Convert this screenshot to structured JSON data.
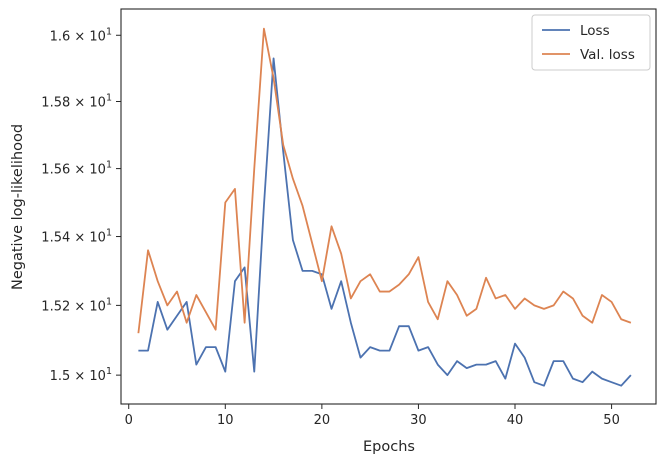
{
  "chart_data": {
    "type": "line",
    "title": "",
    "xlabel": "Epochs",
    "ylabel": "Negative log-likelihood",
    "xlim": [
      -0.8,
      54.6
    ],
    "ylim": [
      14.918,
      16.08
    ],
    "yscale": "log",
    "grid": false,
    "legend_position": "top-right",
    "x_ticks": [
      0,
      10,
      20,
      30,
      40,
      50
    ],
    "x_tick_labels": [
      "0",
      "10",
      "20",
      "30",
      "40",
      "50"
    ],
    "y_ticks": [
      15.0,
      15.2,
      15.4,
      15.6,
      15.8,
      16.0
    ],
    "y_tick_labels": [
      {
        "mant": "1.5",
        "exp": "1"
      },
      {
        "mant": "1.52",
        "exp": "1"
      },
      {
        "mant": "1.54",
        "exp": "1"
      },
      {
        "mant": "1.56",
        "exp": "1"
      },
      {
        "mant": "1.58",
        "exp": "1"
      },
      {
        "mant": "1.6",
        "exp": "1"
      }
    ],
    "x": [
      1,
      2,
      3,
      4,
      5,
      6,
      7,
      8,
      9,
      10,
      11,
      12,
      13,
      14,
      15,
      16,
      17,
      18,
      19,
      20,
      21,
      22,
      23,
      24,
      25,
      26,
      27,
      28,
      29,
      30,
      31,
      32,
      33,
      34,
      35,
      36,
      37,
      38,
      39,
      40,
      41,
      42,
      43,
      44,
      45,
      46,
      47,
      48,
      49,
      50,
      51,
      52
    ],
    "series": [
      {
        "name": "Loss",
        "color": "#4c72b0",
        "values": [
          15.07,
          15.07,
          15.21,
          15.13,
          15.17,
          15.21,
          15.03,
          15.08,
          15.08,
          15.01,
          15.27,
          15.31,
          15.01,
          15.49,
          15.93,
          15.65,
          15.39,
          15.3,
          15.3,
          15.29,
          15.19,
          15.27,
          15.15,
          15.05,
          15.08,
          15.07,
          15.07,
          15.14,
          15.14,
          15.07,
          15.08,
          15.03,
          15.0,
          15.04,
          15.02,
          15.03,
          15.03,
          15.04,
          14.99,
          15.09,
          15.05,
          14.98,
          14.97,
          15.04,
          15.04,
          14.99,
          14.98,
          15.01,
          14.99,
          14.98,
          14.97,
          15.0
        ]
      },
      {
        "name": "Val. loss",
        "color": "#dd8452",
        "values": [
          15.12,
          15.36,
          15.27,
          15.2,
          15.24,
          15.15,
          15.23,
          15.18,
          15.13,
          15.5,
          15.54,
          15.15,
          15.6,
          16.02,
          15.87,
          15.67,
          15.57,
          15.49,
          15.38,
          15.27,
          15.43,
          15.35,
          15.22,
          15.27,
          15.29,
          15.24,
          15.24,
          15.26,
          15.29,
          15.34,
          15.21,
          15.16,
          15.27,
          15.23,
          15.17,
          15.19,
          15.28,
          15.22,
          15.23,
          15.19,
          15.22,
          15.2,
          15.19,
          15.2,
          15.24,
          15.22,
          15.17,
          15.15,
          15.23,
          15.21,
          15.16,
          15.15
        ]
      }
    ]
  }
}
